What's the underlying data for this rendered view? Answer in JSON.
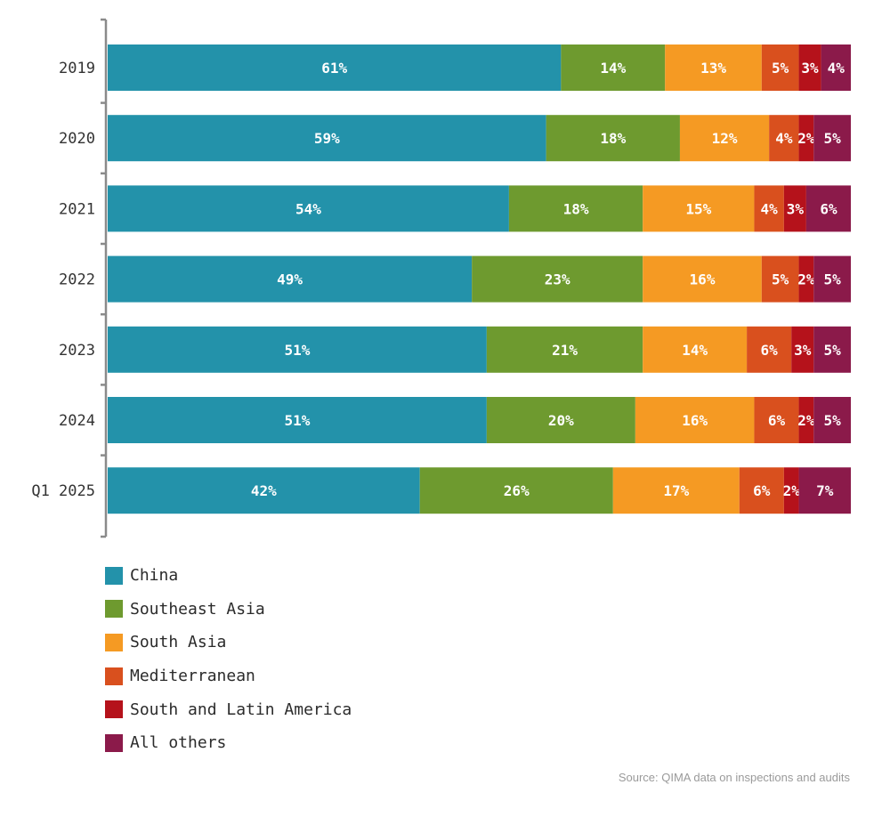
{
  "chart_data": {
    "type": "bar",
    "orientation": "horizontal",
    "stacked": true,
    "categories": [
      "2019",
      "2020",
      "2021",
      "2022",
      "2023",
      "2024",
      "Q1 2025"
    ],
    "series": [
      {
        "name": "China",
        "color": "#2392aa",
        "values": [
          61,
          59,
          54,
          49,
          51,
          51,
          42
        ]
      },
      {
        "name": "Southeast Asia",
        "color": "#6e9a2f",
        "values": [
          14,
          18,
          18,
          23,
          21,
          20,
          26
        ]
      },
      {
        "name": "South Asia",
        "color": "#f59a23",
        "values": [
          13,
          12,
          15,
          16,
          14,
          16,
          17
        ]
      },
      {
        "name": "Mediterranean",
        "color": "#d9501e",
        "values": [
          5,
          4,
          4,
          5,
          6,
          6,
          6
        ]
      },
      {
        "name": "South and Latin America",
        "color": "#b5121b",
        "values": [
          3,
          2,
          3,
          2,
          3,
          2,
          2
        ]
      },
      {
        "name": "All others",
        "color": "#8b1a4a",
        "values": [
          4,
          5,
          6,
          5,
          5,
          5,
          7
        ]
      }
    ],
    "value_suffix": "%",
    "legend_position": "bottom-left",
    "grid": false
  },
  "source": "Source: QIMA data on inspections and audits"
}
